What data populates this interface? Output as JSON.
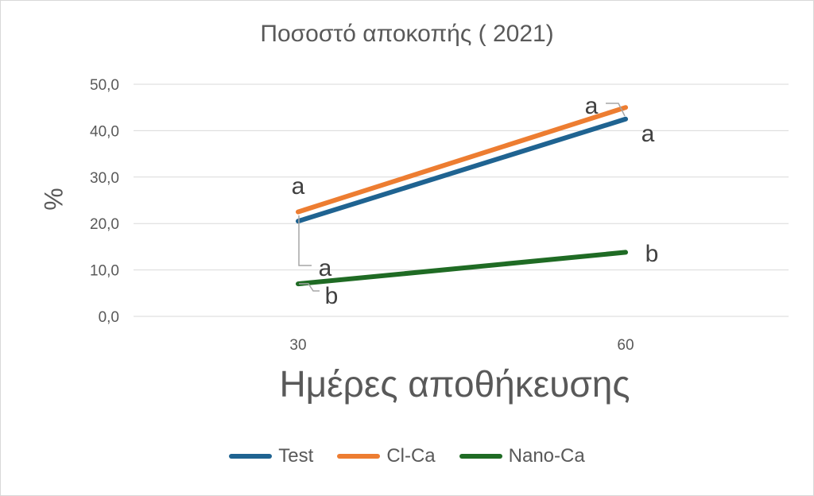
{
  "chart_data": {
    "type": "line",
    "title": "Ποσοστό αποκοπής ( 2021)",
    "xlabel": "Ημέρες αποθήκευσης",
    "ylabel": "%",
    "categories": [
      "30",
      "60"
    ],
    "yticks": [
      "0,0",
      "10,0",
      "20,0",
      "30,0",
      "40,0",
      "50,0"
    ],
    "ylim": [
      0,
      50
    ],
    "grid": true,
    "legend_position": "bottom",
    "series": [
      {
        "name": "Test",
        "color": "#1f6391",
        "values": [
          20.5,
          42.5
        ],
        "labels": [
          "a",
          "a"
        ]
      },
      {
        "name": "Cl-Ca",
        "color": "#ed7d31",
        "values": [
          22.5,
          45.0
        ],
        "labels": [
          "a",
          "a"
        ]
      },
      {
        "name": "Nano-Ca",
        "color": "#1f6b24",
        "values": [
          7.0,
          13.8
        ],
        "labels": [
          "b",
          "b"
        ]
      }
    ]
  }
}
